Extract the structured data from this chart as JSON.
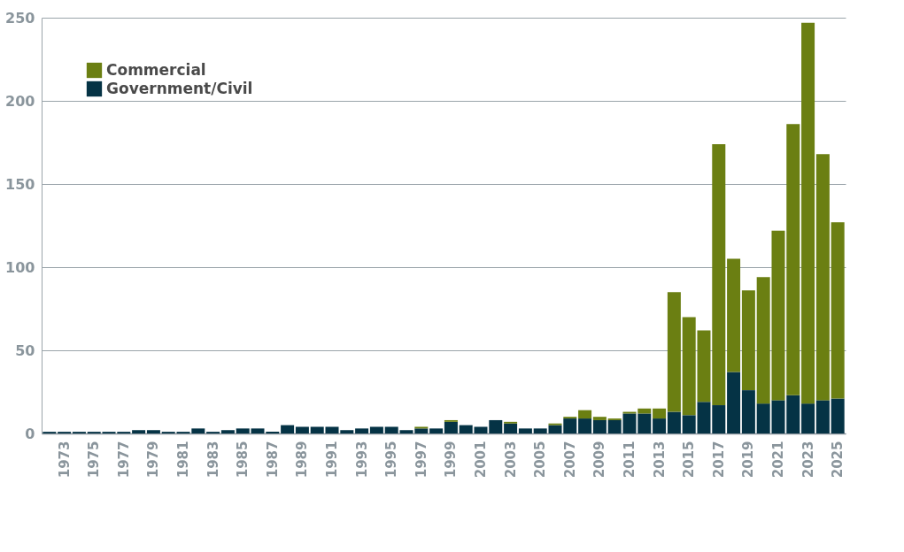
{
  "chart_data": {
    "type": "bar",
    "stacked": true,
    "categories": [
      null,
      "1973",
      null,
      "1975",
      null,
      "1977",
      null,
      "1979",
      null,
      "1981",
      null,
      "1983",
      null,
      "1985",
      null,
      "1987",
      null,
      "1989",
      null,
      "1991",
      null,
      "1993",
      null,
      "1995",
      null,
      "1997",
      null,
      "1999",
      null,
      "2001",
      null,
      "2003",
      null,
      "2005",
      null,
      "2007",
      null,
      "2009",
      null,
      "2011",
      null,
      "2013",
      null,
      "2015",
      null,
      "2017",
      null,
      "2019",
      null,
      "2021",
      null,
      "2023",
      null,
      "2025"
    ],
    "series": [
      {
        "name": "Government/Civil",
        "color": "#053345",
        "values": [
          1,
          1,
          1,
          1,
          1,
          1,
          2,
          2,
          1,
          1,
          3,
          1,
          2,
          3,
          3,
          1,
          5,
          4,
          4,
          4,
          2,
          3,
          4,
          4,
          2,
          3,
          3,
          7,
          5,
          4,
          8,
          6,
          3,
          3,
          5,
          9,
          9,
          8,
          8,
          12,
          12,
          9,
          13,
          11,
          19,
          17,
          37,
          26,
          18,
          20,
          23,
          18,
          20,
          21
        ]
      },
      {
        "name": "Commercial",
        "color": "#6b7f12",
        "values": [
          0,
          0,
          0,
          0,
          0,
          0,
          0,
          0,
          0,
          0,
          0,
          0,
          0,
          0,
          0,
          0,
          0,
          0,
          0,
          0,
          0,
          0,
          0,
          0,
          0,
          1,
          0,
          1,
          0,
          0,
          0,
          1,
          0,
          0,
          1,
          1,
          5,
          2,
          1,
          1,
          3,
          6,
          72,
          59,
          43,
          157,
          68,
          60,
          76,
          102,
          163,
          229,
          148,
          106
        ]
      }
    ],
    "ylim": [
      0,
      250
    ],
    "yticks": [
      0,
      50,
      100,
      150,
      200,
      250
    ],
    "grid": "y",
    "legend": "top left"
  }
}
